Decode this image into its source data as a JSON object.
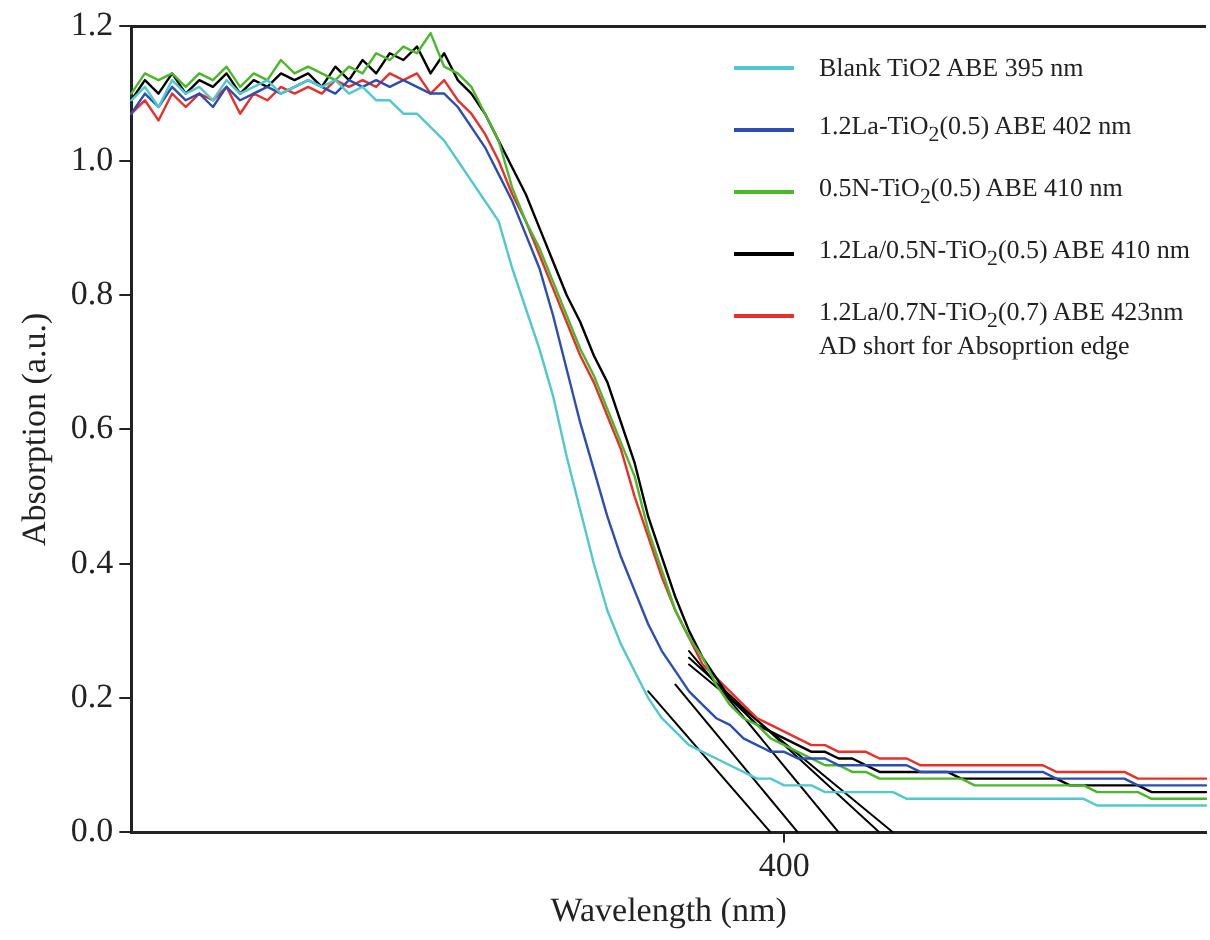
{
  "chart_data": {
    "type": "line",
    "xlabel": "Wavelength (nm)",
    "ylabel": "Absorption (a.u.)",
    "categories": [
      null,
      null,
      null,
      null,
      null,
      null,
      null,
      null,
      null,
      null,
      null,
      null,
      null,
      null,
      null,
      null,
      null,
      null,
      null,
      null,
      null,
      null,
      null,
      null,
      null,
      null,
      null,
      null,
      null,
      null,
      null,
      null,
      null,
      null,
      null,
      null,
      null,
      null,
      null,
      null,
      null,
      null,
      null,
      null,
      null,
      null,
      null,
      null,
      "400",
      null,
      null,
      null,
      null,
      null,
      null,
      null,
      null,
      null,
      null,
      null,
      null,
      null,
      null,
      null,
      null,
      null,
      null,
      null,
      null,
      null,
      null,
      null,
      null,
      null,
      null,
      null,
      null,
      null,
      null,
      null
    ],
    "ylim": [
      0,
      1.2
    ],
    "yticks": [
      {
        "value": 0,
        "label": "0.0"
      },
      0.2,
      0.4,
      0.6,
      0.8,
      {
        "value": 1,
        "label": "1.0"
      },
      1.2
    ],
    "grid": false,
    "legend": "top right",
    "marker": "none",
    "line_style": "solid",
    "annotations": [
      "AD  short for Absoprtion edge"
    ],
    "series": [
      {
        "name": "Blank TiO2 ABE 395 nm",
        "color": "#4fc8d0",
        "values": [
          1.09,
          1.11,
          1.08,
          1.12,
          1.1,
          1.11,
          1.09,
          1.12,
          1.1,
          1.11,
          1.12,
          1.1,
          1.11,
          1.12,
          1.11,
          1.12,
          1.1,
          1.11,
          1.09,
          1.09,
          1.07,
          1.07,
          1.05,
          1.03,
          1.0,
          0.97,
          0.94,
          0.91,
          0.84,
          0.78,
          0.72,
          0.65,
          0.56,
          0.48,
          0.4,
          0.33,
          0.28,
          0.24,
          0.2,
          0.17,
          0.15,
          0.13,
          0.12,
          0.11,
          0.1,
          0.09,
          0.08,
          0.08,
          0.07,
          0.07,
          0.07,
          0.06,
          0.06,
          0.06,
          0.06,
          0.06,
          0.06,
          0.05,
          0.05,
          0.05,
          0.05,
          0.05,
          0.05,
          0.05,
          0.05,
          0.05,
          0.05,
          0.05,
          0.05,
          0.05,
          0.05,
          0.04,
          0.04,
          0.04,
          0.04,
          0.04,
          0.04,
          0.04,
          0.04,
          0.04
        ]
      },
      {
        "name": "1.2La-TiO$_{2}$(0.5) ABE 402 nm",
        "color": "#2a4fb0",
        "values": [
          1.07,
          1.1,
          1.08,
          1.11,
          1.09,
          1.1,
          1.08,
          1.11,
          1.09,
          1.1,
          1.11,
          1.1,
          1.11,
          1.12,
          1.11,
          1.1,
          1.12,
          1.11,
          1.12,
          1.11,
          1.12,
          1.11,
          1.1,
          1.1,
          1.08,
          1.05,
          1.02,
          0.98,
          0.94,
          0.89,
          0.84,
          0.77,
          0.69,
          0.61,
          0.54,
          0.47,
          0.41,
          0.36,
          0.31,
          0.27,
          0.24,
          0.21,
          0.19,
          0.17,
          0.16,
          0.14,
          0.13,
          0.12,
          0.12,
          0.11,
          0.11,
          0.11,
          0.1,
          0.1,
          0.1,
          0.1,
          0.1,
          0.1,
          0.09,
          0.09,
          0.09,
          0.09,
          0.09,
          0.09,
          0.09,
          0.09,
          0.09,
          0.09,
          0.08,
          0.08,
          0.08,
          0.08,
          0.08,
          0.08,
          0.07,
          0.07,
          0.07,
          0.07,
          0.07,
          0.07
        ]
      },
      {
        "name": "0.5N-TiO$_{2}$(0.5) ABE 410 nm",
        "color": "#4ab82a",
        "values": [
          1.1,
          1.13,
          1.12,
          1.13,
          1.11,
          1.13,
          1.12,
          1.14,
          1.11,
          1.13,
          1.12,
          1.15,
          1.13,
          1.14,
          1.13,
          1.12,
          1.14,
          1.13,
          1.16,
          1.15,
          1.17,
          1.16,
          1.19,
          1.14,
          1.13,
          1.11,
          1.07,
          1.03,
          0.96,
          0.91,
          0.87,
          0.82,
          0.77,
          0.72,
          0.68,
          0.63,
          0.58,
          0.53,
          0.45,
          0.39,
          0.33,
          0.29,
          0.26,
          0.22,
          0.19,
          0.17,
          0.16,
          0.14,
          0.13,
          0.12,
          0.11,
          0.1,
          0.1,
          0.09,
          0.09,
          0.08,
          0.08,
          0.08,
          0.08,
          0.08,
          0.08,
          0.08,
          0.07,
          0.07,
          0.07,
          0.07,
          0.07,
          0.07,
          0.07,
          0.07,
          0.07,
          0.06,
          0.06,
          0.06,
          0.06,
          0.05,
          0.05,
          0.05,
          0.05,
          0.05
        ]
      },
      {
        "name": "1.2La/0.5N-TiO$_{2}$(0.5) ABE 410 nm",
        "color": "#000000",
        "values": [
          1.09,
          1.12,
          1.1,
          1.13,
          1.1,
          1.12,
          1.11,
          1.13,
          1.1,
          1.12,
          1.11,
          1.13,
          1.12,
          1.13,
          1.11,
          1.14,
          1.12,
          1.15,
          1.13,
          1.16,
          1.15,
          1.17,
          1.13,
          1.16,
          1.12,
          1.1,
          1.07,
          1.03,
          0.99,
          0.95,
          0.9,
          0.85,
          0.8,
          0.76,
          0.71,
          0.67,
          0.61,
          0.55,
          0.47,
          0.41,
          0.35,
          0.3,
          0.26,
          0.23,
          0.2,
          0.18,
          0.16,
          0.15,
          0.14,
          0.13,
          0.12,
          0.12,
          0.11,
          0.11,
          0.1,
          0.09,
          0.09,
          0.09,
          0.09,
          0.09,
          0.09,
          0.08,
          0.08,
          0.08,
          0.08,
          0.08,
          0.08,
          0.08,
          0.08,
          0.07,
          0.07,
          0.07,
          0.07,
          0.07,
          0.07,
          0.06,
          0.06,
          0.06,
          0.06,
          0.06
        ]
      },
      {
        "name": "1.2La/0.7N-TiO$_{2}$(0.7) ABE 423nm",
        "color": "#e8302a",
        "values": [
          1.07,
          1.09,
          1.06,
          1.1,
          1.08,
          1.1,
          1.09,
          1.11,
          1.07,
          1.1,
          1.09,
          1.11,
          1.1,
          1.11,
          1.1,
          1.12,
          1.11,
          1.12,
          1.11,
          1.13,
          1.12,
          1.13,
          1.1,
          1.12,
          1.09,
          1.07,
          1.04,
          1.0,
          0.95,
          0.91,
          0.86,
          0.81,
          0.76,
          0.71,
          0.67,
          0.62,
          0.57,
          0.5,
          0.44,
          0.38,
          0.33,
          0.29,
          0.25,
          0.23,
          0.21,
          0.19,
          0.17,
          0.16,
          0.15,
          0.14,
          0.13,
          0.13,
          0.12,
          0.12,
          0.12,
          0.11,
          0.11,
          0.11,
          0.1,
          0.1,
          0.1,
          0.1,
          0.1,
          0.1,
          0.1,
          0.1,
          0.1,
          0.1,
          0.09,
          0.09,
          0.09,
          0.09,
          0.09,
          0.09,
          0.08,
          0.08,
          0.08,
          0.08,
          0.08,
          0.08
        ]
      },
      {
        "color": "#000000",
        "values": [
          null,
          null,
          null,
          null,
          null,
          null,
          null,
          null,
          null,
          null,
          null,
          null,
          null,
          null,
          null,
          null,
          null,
          null,
          null,
          null,
          null,
          null,
          null,
          null,
          null,
          null,
          null,
          null,
          null,
          null,
          null,
          null,
          null,
          null,
          null,
          null,
          null,
          null,
          0.21,
          null,
          null,
          null,
          null,
          null,
          null,
          null,
          null,
          0,
          null,
          null,
          null,
          null,
          null,
          null,
          null,
          null,
          null,
          null,
          null,
          null,
          null,
          null,
          null,
          null,
          null,
          null,
          null,
          null,
          null,
          null,
          null,
          null,
          null,
          null,
          null,
          null,
          null,
          null,
          null,
          null
        ]
      },
      {
        "color": "#000000",
        "values": [
          null,
          null,
          null,
          null,
          null,
          null,
          null,
          null,
          null,
          null,
          null,
          null,
          null,
          null,
          null,
          null,
          null,
          null,
          null,
          null,
          null,
          null,
          null,
          null,
          null,
          null,
          null,
          null,
          null,
          null,
          null,
          null,
          null,
          null,
          null,
          null,
          null,
          null,
          null,
          null,
          0.22,
          null,
          null,
          null,
          null,
          null,
          null,
          null,
          null,
          0,
          null,
          null,
          null,
          null,
          null,
          null,
          null,
          null,
          null,
          null,
          null,
          null,
          null,
          null,
          null,
          null,
          null,
          null,
          null,
          null,
          null,
          null,
          null,
          null,
          null,
          null,
          null,
          null,
          null,
          null
        ]
      },
      {
        "color": "#000000",
        "values": [
          null,
          null,
          null,
          null,
          null,
          null,
          null,
          null,
          null,
          null,
          null,
          null,
          null,
          null,
          null,
          null,
          null,
          null,
          null,
          null,
          null,
          null,
          null,
          null,
          null,
          null,
          null,
          null,
          null,
          null,
          null,
          null,
          null,
          null,
          null,
          null,
          null,
          null,
          null,
          null,
          null,
          0.27,
          null,
          null,
          null,
          null,
          null,
          null,
          null,
          null,
          null,
          null,
          0,
          null,
          null,
          null,
          null,
          null,
          null,
          null,
          null,
          null,
          null,
          null,
          null,
          null,
          null,
          null,
          null,
          null,
          null,
          null,
          null,
          null,
          null,
          null,
          null,
          null,
          null,
          null
        ]
      },
      {
        "color": "#000000",
        "values": [
          null,
          null,
          null,
          null,
          null,
          null,
          null,
          null,
          null,
          null,
          null,
          null,
          null,
          null,
          null,
          null,
          null,
          null,
          null,
          null,
          null,
          null,
          null,
          null,
          null,
          null,
          null,
          null,
          null,
          null,
          null,
          null,
          null,
          null,
          null,
          null,
          null,
          null,
          null,
          null,
          null,
          0.26,
          null,
          null,
          null,
          null,
          null,
          null,
          null,
          null,
          null,
          null,
          null,
          null,
          null,
          0,
          null,
          null,
          null,
          null,
          null,
          null,
          null,
          null,
          null,
          null,
          null,
          null,
          null,
          null,
          null,
          null,
          null,
          null,
          null,
          null,
          null,
          null,
          null,
          null
        ]
      },
      {
        "color": "#000000",
        "values": [
          null,
          null,
          null,
          null,
          null,
          null,
          null,
          null,
          null,
          null,
          null,
          null,
          null,
          null,
          null,
          null,
          null,
          null,
          null,
          null,
          null,
          null,
          null,
          null,
          null,
          null,
          null,
          null,
          null,
          null,
          null,
          null,
          null,
          null,
          null,
          null,
          null,
          null,
          null,
          null,
          null,
          0.25,
          null,
          null,
          null,
          null,
          null,
          null,
          null,
          null,
          null,
          null,
          null,
          null,
          null,
          null,
          0,
          null,
          null,
          null,
          null,
          null,
          null,
          null,
          null,
          null,
          null,
          null,
          null,
          null,
          null,
          null,
          null,
          null,
          null,
          null,
          null,
          null,
          null,
          null
        ]
      }
    ]
  }
}
